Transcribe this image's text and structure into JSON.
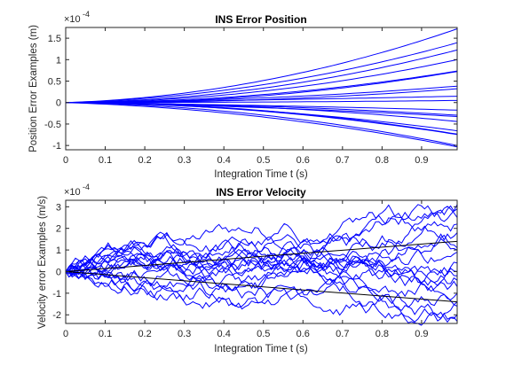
{
  "chart_data": [
    {
      "type": "line",
      "title": "INS Error Position",
      "xlabel": "Integration Time t (s)",
      "ylabel": "Position Error Examples (m)",
      "exponent_label": "×10",
      "exponent_power": "-4",
      "xlim": [
        0,
        0.99
      ],
      "ylim": [
        -1.1,
        1.75
      ],
      "xticks": [
        "0",
        "0.1",
        "0.2",
        "0.3",
        "0.4",
        "0.5",
        "0.6",
        "0.7",
        "0.8",
        "0.9"
      ],
      "yticks": [
        "-1",
        "-0.5",
        "0",
        "0.5",
        "1",
        "1.5"
      ],
      "ytick_values": [
        -1,
        -0.5,
        0,
        0.5,
        1,
        1.5
      ],
      "curve_model": "y = a·t + b·t²",
      "series": [
        {
          "color": "#0000ff",
          "a": 0.3,
          "b": 1.45
        },
        {
          "color": "#0000ff",
          "a": 0.25,
          "b": 1.17
        },
        {
          "color": "#0000ff",
          "a": 0.1,
          "b": 1.15
        },
        {
          "color": "#0000ff",
          "a": 0.05,
          "b": 0.97
        },
        {
          "color": "#0000ff",
          "a": 0.0,
          "b": 0.75
        },
        {
          "color": "#0000ff",
          "a": -0.1,
          "b": 0.84
        },
        {
          "color": "#0000ff",
          "a": 0.05,
          "b": 0.34
        },
        {
          "color": "#0000ff",
          "a": -0.05,
          "b": 0.38
        },
        {
          "color": "#0000ff",
          "a": 0.1,
          "b": 0.05
        },
        {
          "color": "#0000ff",
          "a": 0.0,
          "b": 0.05
        },
        {
          "color": "#0000ff",
          "a": -0.1,
          "b": -0.08
        },
        {
          "color": "#0000ff",
          "a": -0.05,
          "b": -0.25
        },
        {
          "color": "#0000ff",
          "a": -0.15,
          "b": -0.18
        },
        {
          "color": "#0000ff",
          "a": 0.0,
          "b": -0.45
        },
        {
          "color": "#0000ff",
          "a": -0.1,
          "b": -0.57
        },
        {
          "color": "#0000ff",
          "a": 0.0,
          "b": -0.75
        },
        {
          "color": "#0000ff",
          "a": -0.05,
          "b": -0.71
        },
        {
          "color": "#0000ff",
          "a": -0.15,
          "b": -0.87
        },
        {
          "color": "#0000ff",
          "a": -0.3,
          "b": -0.75
        }
      ]
    },
    {
      "type": "line",
      "title": "INS Error Velocity",
      "xlabel": "Integration Time t (s)",
      "ylabel": "Velocity error Examples (m/s)",
      "exponent_label": "×10",
      "exponent_power": "-4",
      "xlim": [
        0,
        0.99
      ],
      "ylim": [
        -2.4,
        3.3
      ],
      "xticks": [
        "0",
        "0.1",
        "0.2",
        "0.3",
        "0.4",
        "0.5",
        "0.6",
        "0.7",
        "0.8",
        "0.9"
      ],
      "yticks": [
        "-2",
        "-1",
        "0",
        "1",
        "2",
        "3"
      ],
      "ytick_values": [
        -2,
        -1,
        0,
        1,
        2,
        3
      ],
      "bounds": [
        {
          "color": "#000000",
          "x": [
            0,
            0.99
          ],
          "y": [
            0,
            1.4
          ]
        },
        {
          "color": "#000000",
          "x": [
            0,
            0.99
          ],
          "y": [
            0,
            -1.4
          ]
        }
      ],
      "walk_endpoints": [
        3.1,
        2.9,
        2.5,
        2.2,
        1.8,
        1.1,
        1.0,
        0.9,
        0.4,
        0.0,
        -0.2,
        -0.4,
        -0.7,
        -1.0,
        -1.4,
        -1.6,
        -2.0,
        -2.3
      ],
      "walk_color": "#0000ff",
      "walk_steps": 120
    }
  ]
}
